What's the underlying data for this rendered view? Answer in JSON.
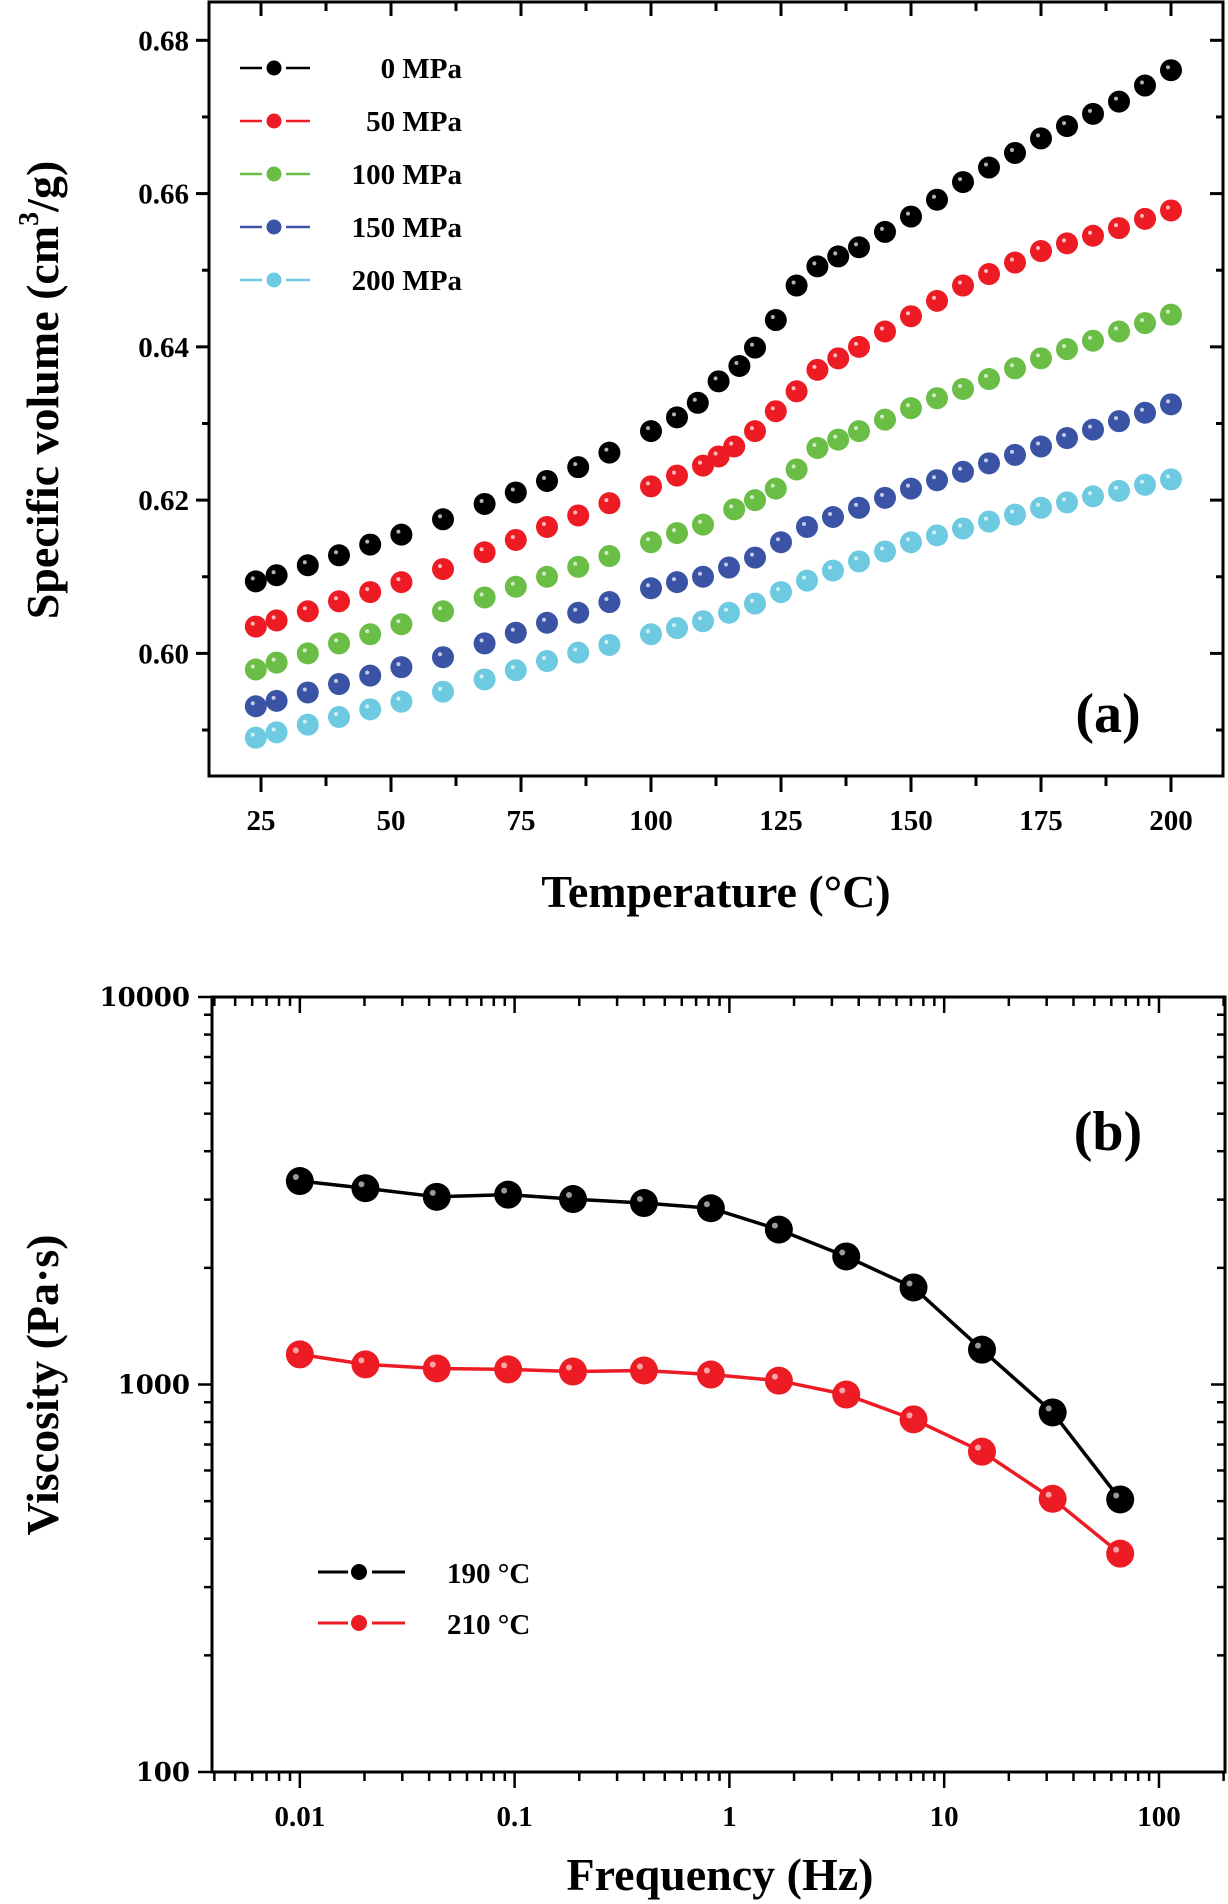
{
  "chart_data": [
    {
      "type": "scatter",
      "panel_label": "(a)",
      "title": "",
      "xlabel": "Temperature (°C)",
      "ylabel": "Specific volume (cm³/g)",
      "ylabel_parts": {
        "main": "Specific volume (cm",
        "sup": "3",
        "tail": "/g)"
      },
      "xlim": [
        15,
        210
      ],
      "ylim": [
        0.584,
        0.685
      ],
      "xticks": [
        25,
        50,
        75,
        100,
        125,
        150,
        175,
        200
      ],
      "xtick_labels": [
        "25",
        "50",
        "75",
        "100",
        "125",
        "150",
        "175",
        "200"
      ],
      "yticks": [
        0.6,
        0.62,
        0.64,
        0.66,
        0.68
      ],
      "ytick_labels": [
        "0.60",
        "0.62",
        "0.64",
        "0.66",
        "0.68"
      ],
      "grid": false,
      "legend_position": "top-left",
      "series": [
        {
          "name": "0 MPa",
          "color": "#000000",
          "x": [
            24,
            28,
            34,
            40,
            46,
            52,
            60,
            68,
            74,
            80,
            86,
            92,
            100,
            105,
            109,
            113,
            117,
            120,
            124,
            128,
            132,
            136,
            140,
            145,
            150,
            155,
            160,
            165,
            170,
            175,
            180,
            185,
            190,
            195,
            200
          ],
          "y": [
            0.6094,
            0.6102,
            0.6115,
            0.6128,
            0.6142,
            0.6155,
            0.6175,
            0.6195,
            0.621,
            0.6225,
            0.6243,
            0.6262,
            0.629,
            0.6308,
            0.6327,
            0.6355,
            0.6375,
            0.6399,
            0.6435,
            0.648,
            0.6505,
            0.6518,
            0.653,
            0.655,
            0.657,
            0.6592,
            0.6615,
            0.6634,
            0.6653,
            0.6672,
            0.6688,
            0.6704,
            0.672,
            0.6741,
            0.6761
          ]
        },
        {
          "name": "50 MPa",
          "color": "#ED1C24",
          "x": [
            24,
            28,
            34,
            40,
            46,
            52,
            60,
            68,
            74,
            80,
            86,
            92,
            100,
            105,
            110,
            113,
            116,
            120,
            124,
            128,
            132,
            136,
            140,
            145,
            150,
            155,
            160,
            165,
            170,
            175,
            180,
            185,
            190,
            195,
            200
          ],
          "y": [
            0.6035,
            0.6043,
            0.6055,
            0.6068,
            0.608,
            0.6093,
            0.611,
            0.6132,
            0.6148,
            0.6165,
            0.618,
            0.6196,
            0.6218,
            0.6232,
            0.6245,
            0.6257,
            0.627,
            0.629,
            0.6316,
            0.6342,
            0.637,
            0.6385,
            0.64,
            0.642,
            0.644,
            0.646,
            0.648,
            0.6495,
            0.651,
            0.6525,
            0.6535,
            0.6545,
            0.6555,
            0.6567,
            0.6578
          ]
        },
        {
          "name": "100 MPa",
          "color": "#6ABD45",
          "x": [
            24,
            28,
            34,
            40,
            46,
            52,
            60,
            68,
            74,
            80,
            86,
            92,
            100,
            105,
            110,
            116,
            120,
            124,
            128,
            132,
            136,
            140,
            145,
            150,
            155,
            160,
            165,
            170,
            175,
            180,
            185,
            190,
            195,
            200
          ],
          "y": [
            0.5979,
            0.5988,
            0.6,
            0.6013,
            0.6025,
            0.6038,
            0.6055,
            0.6073,
            0.6087,
            0.61,
            0.6113,
            0.6127,
            0.6145,
            0.6157,
            0.6168,
            0.6188,
            0.62,
            0.6215,
            0.624,
            0.6268,
            0.6279,
            0.629,
            0.6305,
            0.632,
            0.6333,
            0.6345,
            0.6358,
            0.6372,
            0.6385,
            0.6397,
            0.6408,
            0.642,
            0.6431,
            0.6442
          ]
        },
        {
          "name": "150 MPa",
          "color": "#3A53A4",
          "x": [
            24,
            28,
            34,
            40,
            46,
            52,
            60,
            68,
            74,
            80,
            86,
            92,
            100,
            105,
            110,
            115,
            120,
            125,
            130,
            135,
            140,
            145,
            150,
            155,
            160,
            165,
            170,
            175,
            180,
            185,
            190,
            195,
            200
          ],
          "y": [
            0.5931,
            0.5938,
            0.5949,
            0.596,
            0.5971,
            0.5982,
            0.5995,
            0.6013,
            0.6027,
            0.604,
            0.6053,
            0.6067,
            0.6085,
            0.6093,
            0.61,
            0.6112,
            0.6125,
            0.6145,
            0.6165,
            0.6178,
            0.619,
            0.6203,
            0.6215,
            0.6226,
            0.6237,
            0.6248,
            0.6259,
            0.627,
            0.6281,
            0.6292,
            0.6303,
            0.6314,
            0.6325
          ]
        },
        {
          "name": "200 MPa",
          "color": "#6DCAE0",
          "x": [
            24,
            28,
            34,
            40,
            46,
            52,
            60,
            68,
            74,
            80,
            86,
            92,
            100,
            105,
            110,
            115,
            120,
            125,
            130,
            135,
            140,
            145,
            150,
            155,
            160,
            165,
            170,
            175,
            180,
            185,
            190,
            195,
            200
          ],
          "y": [
            0.589,
            0.5897,
            0.5907,
            0.5917,
            0.5927,
            0.5937,
            0.595,
            0.5966,
            0.5978,
            0.599,
            0.6001,
            0.6011,
            0.6025,
            0.6033,
            0.6042,
            0.6053,
            0.6065,
            0.608,
            0.6095,
            0.6108,
            0.612,
            0.6133,
            0.6145,
            0.6154,
            0.6163,
            0.6172,
            0.6181,
            0.619,
            0.6197,
            0.6205,
            0.6212,
            0.622,
            0.6227
          ]
        }
      ]
    },
    {
      "type": "line",
      "panel_label": "(b)",
      "title": "",
      "xlabel": "Frequency (Hz)",
      "ylabel": "Viscosity (Pa·s)",
      "xscale": "log",
      "yscale": "log",
      "xlim": [
        0.0039,
        203
      ],
      "ylim": [
        100,
        10000
      ],
      "xticks": [
        0.01,
        0.1,
        1,
        10,
        100
      ],
      "xtick_labels": [
        "0.01",
        "0.1",
        "1",
        "10",
        "100"
      ],
      "yticks": [
        100,
        1000,
        10000
      ],
      "ytick_labels": [
        "100",
        "1000",
        "10000"
      ],
      "grid": false,
      "legend_position": "bottom-left",
      "series": [
        {
          "name": "190 °C",
          "color": "#000000",
          "x": [
            0.01,
            0.0202,
            0.0434,
            0.0933,
            0.187,
            0.4,
            0.82,
            1.7,
            3.5,
            7.2,
            15,
            32,
            66
          ],
          "y": [
            3350,
            3210,
            3050,
            3090,
            3010,
            2940,
            2850,
            2510,
            2140,
            1780,
            1230,
            847,
            505
          ]
        },
        {
          "name": "210 °C",
          "color": "#ED1C24",
          "x": [
            0.01,
            0.0202,
            0.0434,
            0.0933,
            0.187,
            0.4,
            0.82,
            1.7,
            3.5,
            7.2,
            15,
            32,
            66
          ],
          "y": [
            1196,
            1127,
            1100,
            1094,
            1080,
            1087,
            1061,
            1023,
            942,
            813,
            671,
            507,
            366
          ]
        }
      ]
    }
  ]
}
